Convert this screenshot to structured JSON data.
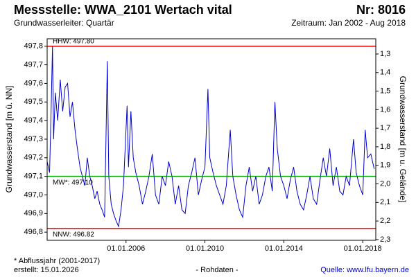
{
  "chart_data": {
    "type": "line",
    "title": "Messstelle: WWA_2101 Wertach vital",
    "number": "Nr: 8016",
    "subtitle": "Grundwasserleiter: Quartär",
    "period": "Zeitraum: Jan 2002 - Aug 2018",
    "ylabel": "Grundwasserstand [m ü. NN]",
    "y2label": "Grundwasserstand [m u. Gelände]",
    "color": "#0000cc",
    "xlim": [
      "2002-01-01",
      "2018-08-31"
    ],
    "xticks": [
      {
        "value": "2006-01-01",
        "label": "01.01.2006"
      },
      {
        "value": "2010-01-01",
        "label": "01.01.2010"
      },
      {
        "value": "2014-01-01",
        "label": "01.01.2014"
      },
      {
        "value": "2018-01-01",
        "label": "01.01.2018"
      }
    ],
    "ylim": [
      496.756,
      497.84
    ],
    "yticks": [
      {
        "value": 496.8,
        "label": "496,8"
      },
      {
        "value": 496.9,
        "label": "496,9"
      },
      {
        "value": 497.0,
        "label": "497,0"
      },
      {
        "value": 497.1,
        "label": "497,1"
      },
      {
        "value": 497.2,
        "label": "497,2"
      },
      {
        "value": 497.3,
        "label": "497,3"
      },
      {
        "value": 497.4,
        "label": "497,4"
      },
      {
        "value": 497.5,
        "label": "497,5"
      },
      {
        "value": 497.6,
        "label": "497,6"
      },
      {
        "value": 497.7,
        "label": "497,7"
      },
      {
        "value": 497.8,
        "label": "497,8"
      }
    ],
    "y2lim": [
      2.304,
      1.218
    ],
    "y2ticks": [
      {
        "value": 1.3,
        "label": "1,3"
      },
      {
        "value": 1.4,
        "label": "1,4"
      },
      {
        "value": 1.5,
        "label": "1,5"
      },
      {
        "value": 1.6,
        "label": "1,6"
      },
      {
        "value": 1.7,
        "label": "1,7"
      },
      {
        "value": 1.8,
        "label": "1,8"
      },
      {
        "value": 1.9,
        "label": "1,9"
      },
      {
        "value": 2.0,
        "label": "2,0"
      },
      {
        "value": 2.1,
        "label": "2,1"
      },
      {
        "value": 2.2,
        "label": "2,2"
      },
      {
        "value": 2.3,
        "label": "2,3"
      }
    ],
    "reference_lines": [
      {
        "label": "HHW: 497.80",
        "value": 497.8,
        "color": "#e00000"
      },
      {
        "label": "MW*: 497.10",
        "value": 497.1,
        "color": "#00a000"
      },
      {
        "label": "NNW: 496.82",
        "value": 496.82,
        "color": "#e00000"
      }
    ],
    "x": [
      "2002-01-01",
      "2002-02-15",
      "2002-03-15",
      "2002-04-10",
      "2002-05-01",
      "2002-06-01",
      "2002-07-15",
      "2002-09-01",
      "2002-10-15",
      "2002-12-01",
      "2003-01-15",
      "2003-03-01",
      "2003-04-15",
      "2003-06-01",
      "2003-07-15",
      "2003-09-01",
      "2003-10-15",
      "2003-12-01",
      "2004-01-15",
      "2004-03-01",
      "2004-04-15",
      "2004-06-01",
      "2004-07-15",
      "2004-09-01",
      "2004-10-15",
      "2004-12-01",
      "2005-01-20",
      "2005-02-15",
      "2005-04-01",
      "2005-05-15",
      "2005-07-01",
      "2005-08-15",
      "2005-10-01",
      "2005-11-15",
      "2006-01-20",
      "2006-02-15",
      "2006-04-01",
      "2006-05-15",
      "2006-07-01",
      "2006-09-01",
      "2006-11-01",
      "2007-01-01",
      "2007-03-01",
      "2007-05-01",
      "2007-07-01",
      "2007-09-01",
      "2007-11-01",
      "2008-01-01",
      "2008-03-01",
      "2008-05-01",
      "2008-07-01",
      "2008-09-01",
      "2008-11-01",
      "2009-01-01",
      "2009-03-01",
      "2009-05-01",
      "2009-07-01",
      "2009-09-01",
      "2009-11-01",
      "2010-01-01",
      "2010-02-25",
      "2010-04-01",
      "2010-06-01",
      "2010-08-01",
      "2010-10-01",
      "2010-12-01",
      "2011-02-01",
      "2011-04-15",
      "2011-06-01",
      "2011-08-01",
      "2011-10-01",
      "2011-12-01",
      "2012-02-01",
      "2012-04-01",
      "2012-06-01",
      "2012-08-01",
      "2012-10-01",
      "2012-12-01",
      "2013-02-01",
      "2013-04-01",
      "2013-06-01",
      "2013-07-20",
      "2013-09-01",
      "2013-11-01",
      "2014-01-01",
      "2014-03-01",
      "2014-05-01",
      "2014-07-01",
      "2014-09-01",
      "2014-11-01",
      "2015-01-01",
      "2015-03-01",
      "2015-05-01",
      "2015-07-01",
      "2015-09-01",
      "2015-11-01",
      "2016-01-01",
      "2016-03-01",
      "2016-05-01",
      "2016-07-01",
      "2016-09-01",
      "2016-11-01",
      "2017-01-01",
      "2017-03-01",
      "2017-05-01",
      "2017-07-15",
      "2017-09-01",
      "2017-11-01",
      "2018-01-01",
      "2018-02-15",
      "2018-04-01",
      "2018-06-01",
      "2018-08-01"
    ],
    "values": [
      497.18,
      497.12,
      497.45,
      497.8,
      497.3,
      497.55,
      497.4,
      497.62,
      497.45,
      497.58,
      497.6,
      497.42,
      497.5,
      497.35,
      497.25,
      497.15,
      497.1,
      497.05,
      497.2,
      497.1,
      497.05,
      496.98,
      497.02,
      496.95,
      496.92,
      496.88,
      497.72,
      497.1,
      496.95,
      496.9,
      496.86,
      496.83,
      496.92,
      497.05,
      497.48,
      497.15,
      497.45,
      497.2,
      497.12,
      497.05,
      496.95,
      497.02,
      497.1,
      497.22,
      497.0,
      496.95,
      497.1,
      497.05,
      497.18,
      497.1,
      496.95,
      497.05,
      496.92,
      496.9,
      497.05,
      497.12,
      497.2,
      497.0,
      497.08,
      497.15,
      497.57,
      497.2,
      497.12,
      497.05,
      497.0,
      496.95,
      497.05,
      497.35,
      497.1,
      497.0,
      496.92,
      496.88,
      497.05,
      497.15,
      497.02,
      497.1,
      496.95,
      497.0,
      497.1,
      497.15,
      497.02,
      497.5,
      497.25,
      497.1,
      497.05,
      496.98,
      497.08,
      497.15,
      497.02,
      496.95,
      496.92,
      497.0,
      497.1,
      496.98,
      496.95,
      497.08,
      497.2,
      497.1,
      497.25,
      497.05,
      497.15,
      497.02,
      497.0,
      497.1,
      497.05,
      497.3,
      497.12,
      497.05,
      497.0,
      497.35,
      497.2,
      497.22,
      497.14
    ],
    "footnote": "* Abflussjahr (2001-2017)",
    "created": "erstellt:  15.01.2026",
    "data_kind": "- Rohdaten -",
    "source": "Quelle: www.lfu.bayern.de"
  }
}
